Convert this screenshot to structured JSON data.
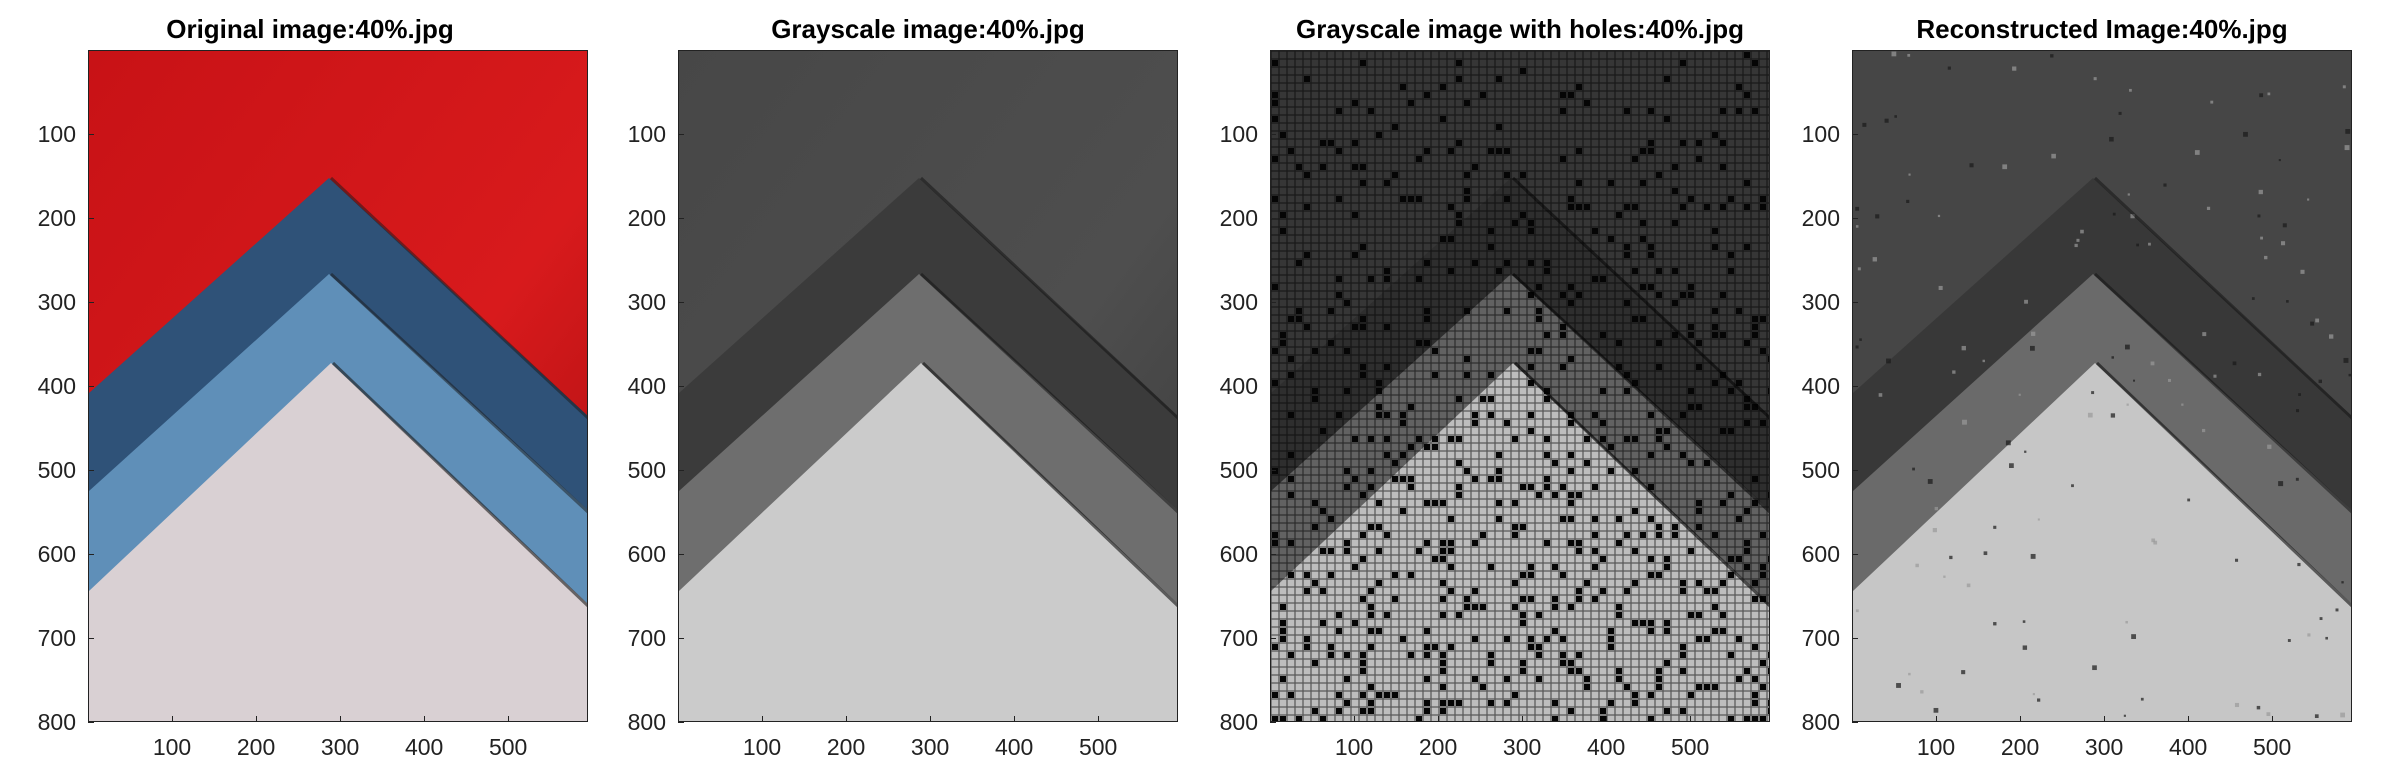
{
  "panels": [
    {
      "title": "Original image:40%.jpg",
      "kind": "color"
    },
    {
      "title": "Grayscale image:40%.jpg",
      "kind": "gray"
    },
    {
      "title": "Grayscale image with holes:40%.jpg",
      "kind": "holes"
    },
    {
      "title": "Reconstructed Image:40%.jpg",
      "kind": "reconstructed"
    }
  ],
  "y_ticks": [
    "100",
    "200",
    "300",
    "400",
    "500",
    "600",
    "700",
    "800"
  ],
  "x_ticks": [
    "100",
    "200",
    "300",
    "400",
    "500"
  ],
  "colors": {
    "red_background": "#d01418",
    "dark_blue_band": "#2f5278",
    "light_blue_band": "#5f8fb8",
    "pale_pink_paper": "#d9d0d3",
    "gray_background": "#4a4a4a",
    "gray_dark_band": "#3b3b3b",
    "gray_mid_band": "#6e6e6e",
    "gray_light_paper": "#cbcbcb"
  }
}
